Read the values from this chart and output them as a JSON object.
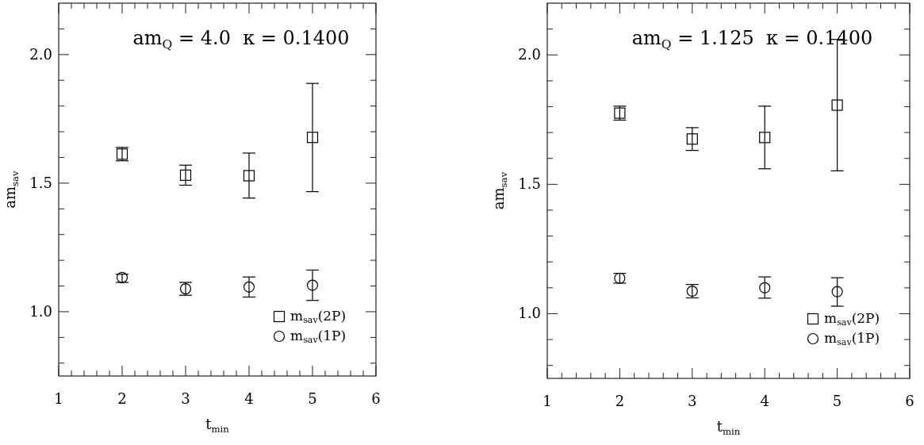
{
  "chart_data": [
    {
      "type": "scatter",
      "title": "am$_{Q}$ = 4.0  κ = 0.1400",
      "xlabel": "t$_{min}$",
      "ylabel": "am$_{sav}$",
      "x": [
        2,
        3,
        4,
        5
      ],
      "xlim": [
        1,
        6
      ],
      "ylim": [
        0.75,
        2.2
      ],
      "xticks": [
        1,
        {
          "value": 1.2,
          "label": null
        },
        {
          "value": 1.4,
          "label": null
        },
        {
          "value": 1.6,
          "label": null
        },
        {
          "value": 1.8,
          "label": null
        },
        2,
        {
          "value": 2.2,
          "label": null
        },
        {
          "value": 2.4,
          "label": null
        },
        {
          "value": 2.6,
          "label": null
        },
        {
          "value": 2.8,
          "label": null
        },
        3,
        {
          "value": 3.2,
          "label": null
        },
        {
          "value": 3.4,
          "label": null
        },
        {
          "value": 3.6,
          "label": null
        },
        {
          "value": 3.8,
          "label": null
        },
        4,
        {
          "value": 4.2,
          "label": null
        },
        {
          "value": 4.4,
          "label": null
        },
        {
          "value": 4.6,
          "label": null
        },
        {
          "value": 4.8,
          "label": null
        },
        5,
        {
          "value": 5.2,
          "label": null
        },
        {
          "value": 5.4,
          "label": null
        },
        {
          "value": 5.6,
          "label": null
        },
        {
          "value": 5.8,
          "label": null
        },
        6
      ],
      "yticks": [
        {
          "value": 0.8,
          "label": null
        },
        {
          "value": 0.9,
          "label": null
        },
        {
          "value": 1,
          "label": "1.0"
        },
        {
          "value": 1.1,
          "label": null
        },
        {
          "value": 1.2,
          "label": null
        },
        {
          "value": 1.3,
          "label": null
        },
        {
          "value": 1.4,
          "label": null
        },
        {
          "value": 1.5,
          "label": "1.5"
        },
        {
          "value": 1.6,
          "label": null
        },
        {
          "value": 1.7,
          "label": null
        },
        {
          "value": 1.8,
          "label": null
        },
        {
          "value": 1.9,
          "label": null
        },
        {
          "value": 2,
          "label": "2.0"
        },
        {
          "value": 2.1,
          "label": null
        }
      ],
      "legend": "bottom right",
      "grid": false,
      "series": [
        {
          "name": "m$_{sav}$(2P)",
          "color": "#000000",
          "marker": "square",
          "values": [
            1.613,
            1.531,
            1.529,
            1.678
          ],
          "errors": [
            [
              1.587,
              1.639
            ],
            [
              1.492,
              1.57
            ],
            [
              1.442,
              1.617
            ],
            [
              1.467,
              1.888
            ]
          ]
        },
        {
          "name": "m$_{sav}$(1P)",
          "color": "#000000",
          "marker": "circle",
          "values": [
            1.133,
            1.089,
            1.096,
            1.103
          ],
          "errors": [
            [
              1.114,
              1.146
            ],
            [
              1.064,
              1.114
            ],
            [
              1.057,
              1.135
            ],
            [
              1.044,
              1.162
            ]
          ]
        }
      ]
    },
    {
      "type": "scatter",
      "title": "am$_{Q}$ = 1.125  κ = 0.1400",
      "xlabel": "t$_{min}$",
      "ylabel": "am$_{sav}$",
      "x": [
        2,
        3,
        4,
        5
      ],
      "xlim": [
        1,
        6
      ],
      "ylim": [
        0.75,
        2.2
      ],
      "xticks": [
        1,
        {
          "value": 1.2,
          "label": null
        },
        {
          "value": 1.4,
          "label": null
        },
        {
          "value": 1.6,
          "label": null
        },
        {
          "value": 1.8,
          "label": null
        },
        2,
        {
          "value": 2.2,
          "label": null
        },
        {
          "value": 2.4,
          "label": null
        },
        {
          "value": 2.6,
          "label": null
        },
        {
          "value": 2.8,
          "label": null
        },
        3,
        {
          "value": 3.2,
          "label": null
        },
        {
          "value": 3.4,
          "label": null
        },
        {
          "value": 3.6,
          "label": null
        },
        {
          "value": 3.8,
          "label": null
        },
        4,
        {
          "value": 4.2,
          "label": null
        },
        {
          "value": 4.4,
          "label": null
        },
        {
          "value": 4.6,
          "label": null
        },
        {
          "value": 4.8,
          "label": null
        },
        5,
        {
          "value": 5.2,
          "label": null
        },
        {
          "value": 5.4,
          "label": null
        },
        {
          "value": 5.6,
          "label": null
        },
        {
          "value": 5.8,
          "label": null
        },
        6
      ],
      "yticks": [
        {
          "value": 0.8,
          "label": null
        },
        {
          "value": 0.9,
          "label": null
        },
        {
          "value": 1,
          "label": "1.0"
        },
        {
          "value": 1.1,
          "label": null
        },
        {
          "value": 1.2,
          "label": null
        },
        {
          "value": 1.3,
          "label": null
        },
        {
          "value": 1.4,
          "label": null
        },
        {
          "value": 1.5,
          "label": "1.5"
        },
        {
          "value": 1.6,
          "label": null
        },
        {
          "value": 1.7,
          "label": null
        },
        {
          "value": 1.8,
          "label": null
        },
        {
          "value": 1.9,
          "label": null
        },
        {
          "value": 2,
          "label": "2.0"
        },
        {
          "value": 2.1,
          "label": null
        }
      ],
      "legend": "bottom right",
      "grid": false,
      "series": [
        {
          "name": "m$_{sav}$(2P)",
          "color": "#000000",
          "marker": "square",
          "values": [
            1.775,
            1.675,
            1.681,
            1.806
          ],
          "errors": [
            [
              1.748,
              1.802
            ],
            [
              1.631,
              1.719
            ],
            [
              1.56,
              1.802
            ],
            [
              1.552,
              2.06
            ]
          ]
        },
        {
          "name": "m$_{sav}$(1P)",
          "color": "#000000",
          "marker": "circle",
          "values": [
            1.137,
            1.087,
            1.1,
            1.085
          ],
          "errors": [
            [
              1.118,
              1.156
            ],
            [
              1.061,
              1.113
            ],
            [
              1.06,
              1.142
            ],
            [
              1.029,
              1.139
            ]
          ]
        }
      ]
    }
  ]
}
